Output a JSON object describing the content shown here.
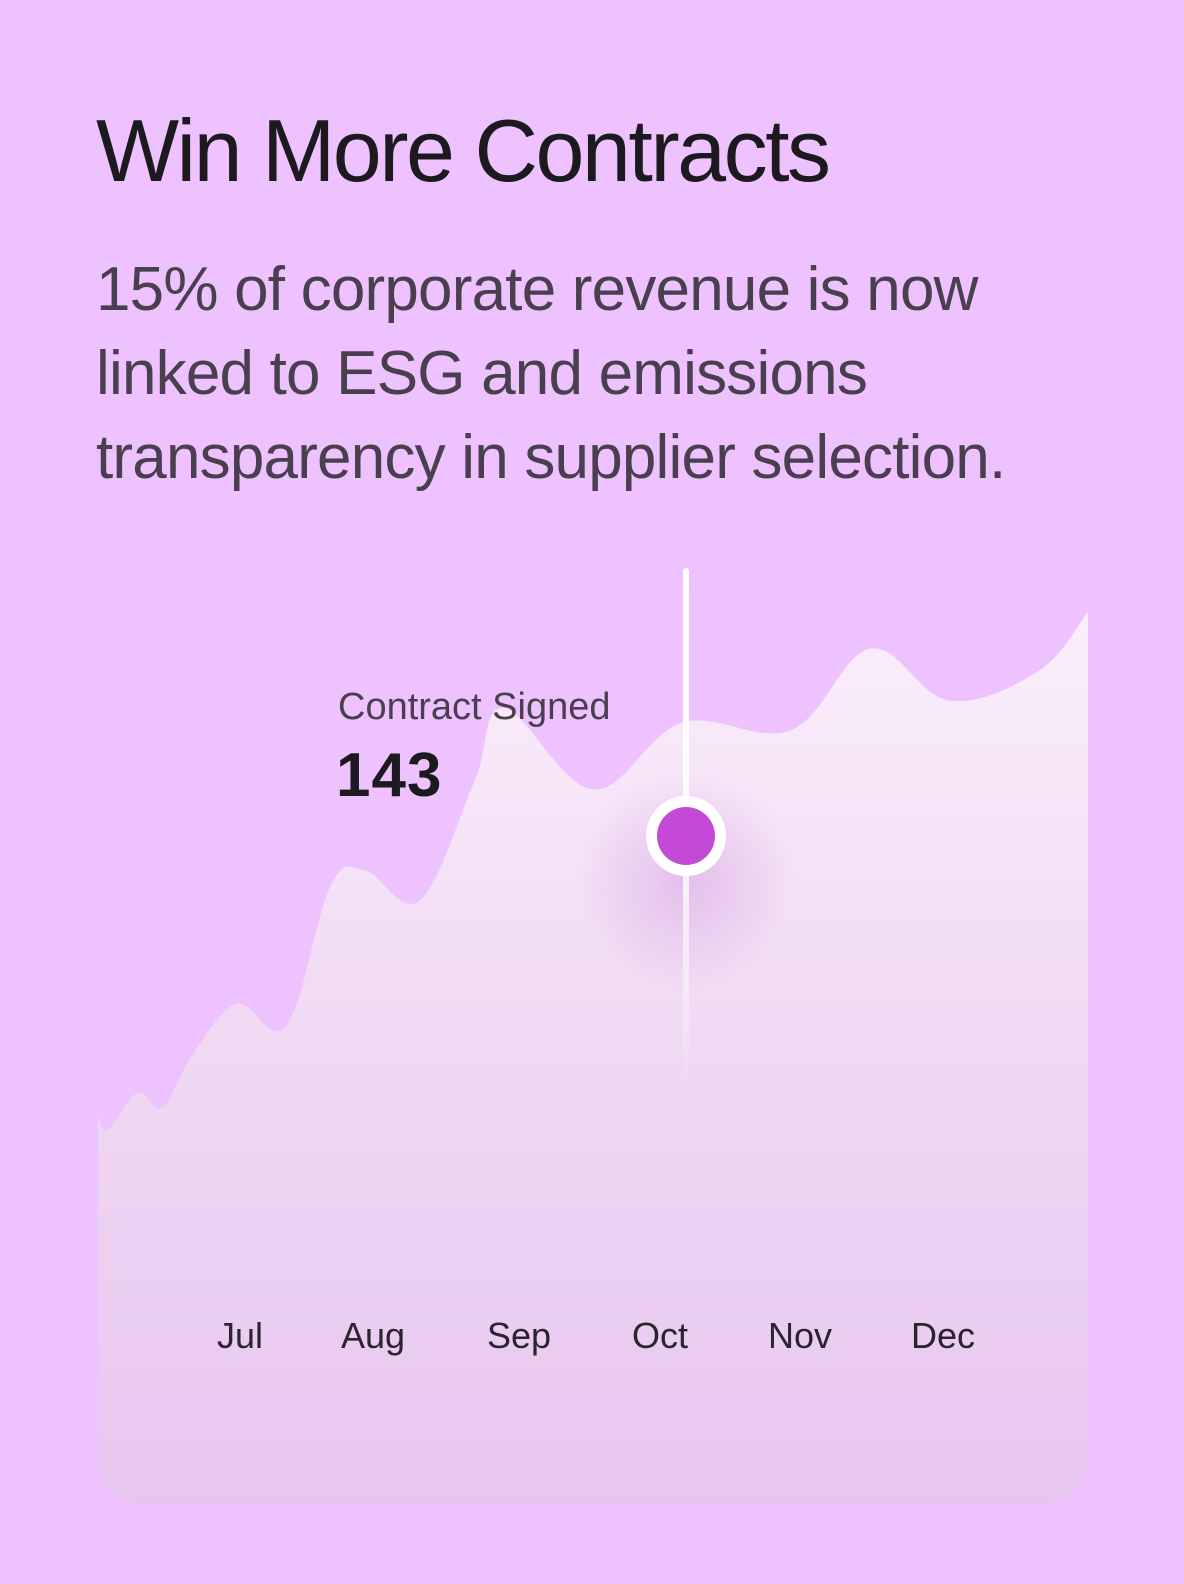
{
  "header": {
    "title": "Win More Contracts",
    "subtitle": "15% of corporate revenue is now linked to ESG and emissions transparency in supplier selection."
  },
  "tooltip": {
    "label": "Contract Signed",
    "value": "143"
  },
  "colors": {
    "background": "#eec2fe",
    "marker": "#c34ad6",
    "text_dark": "#1c1a1f",
    "text_muted": "#4a3f4f"
  },
  "chart_data": {
    "type": "area",
    "categories": [
      "Jul",
      "Aug",
      "Sep",
      "Oct",
      "Nov",
      "Dec"
    ],
    "highlighted": {
      "category": "Oct",
      "value": 143
    },
    "curve": [
      {
        "x": 0.0,
        "y": 0.25
      },
      {
        "x": 0.01,
        "y": 0.23
      },
      {
        "x": 0.04,
        "y": 0.28
      },
      {
        "x": 0.065,
        "y": 0.26
      },
      {
        "x": 0.095,
        "y": 0.33
      },
      {
        "x": 0.14,
        "y": 0.4
      },
      {
        "x": 0.19,
        "y": 0.37
      },
      {
        "x": 0.235,
        "y": 0.56
      },
      {
        "x": 0.27,
        "y": 0.58
      },
      {
        "x": 0.325,
        "y": 0.54
      },
      {
        "x": 0.38,
        "y": 0.7
      },
      {
        "x": 0.41,
        "y": 0.8
      },
      {
        "x": 0.5,
        "y": 0.69
      },
      {
        "x": 0.59,
        "y": 0.78
      },
      {
        "x": 0.7,
        "y": 0.77
      },
      {
        "x": 0.78,
        "y": 0.88
      },
      {
        "x": 0.86,
        "y": 0.81
      },
      {
        "x": 0.95,
        "y": 0.85
      },
      {
        "x": 1.0,
        "y": 0.93
      }
    ]
  }
}
